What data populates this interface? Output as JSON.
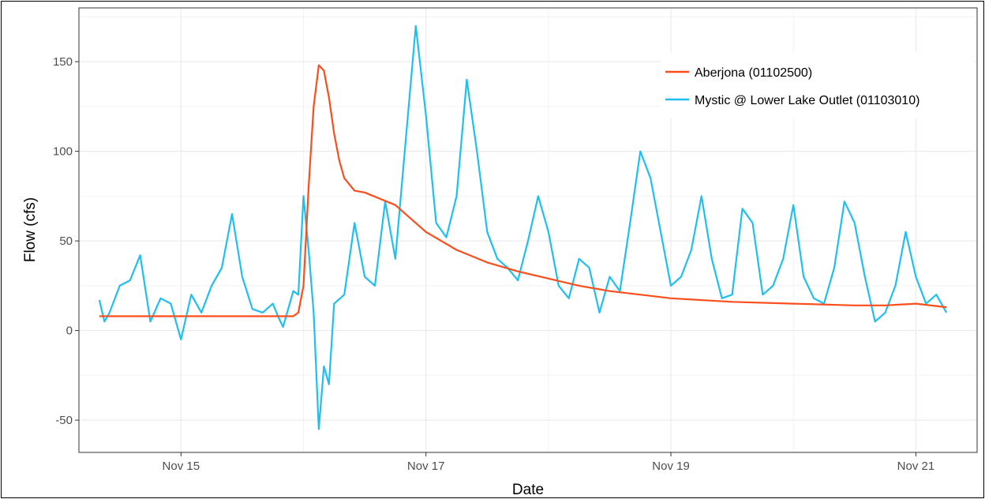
{
  "chart_data": {
    "type": "line",
    "title": "",
    "xlabel": "Date",
    "ylabel": "Flow (cfs)",
    "xlim": [
      "2016-11-14T04:00",
      "2016-11-21T12:00"
    ],
    "ylim": [
      -68,
      180
    ],
    "x_ticks": [
      {
        "label": "Nov 15",
        "date": "2016-11-15T00:00"
      },
      {
        "label": "Nov 17",
        "date": "2016-11-17T00:00"
      },
      {
        "label": "Nov 19",
        "date": "2016-11-19T00:00"
      },
      {
        "label": "Nov 21",
        "date": "2016-11-21T00:00"
      }
    ],
    "y_ticks": [
      -50,
      0,
      50,
      100,
      150
    ],
    "y_tick_labels": [
      "-50",
      "0",
      "50",
      "100",
      "150"
    ],
    "grid": true,
    "legend_position": "top-right",
    "series": [
      {
        "name": "Aberjona (01102500)",
        "color": "#fc4e1c",
        "x": [
          "2016-11-14T08:00",
          "2016-11-15T00:00",
          "2016-11-15T12:00",
          "2016-11-15T22:00",
          "2016-11-15T23:00",
          "2016-11-16T00:00",
          "2016-11-16T01:00",
          "2016-11-16T02:00",
          "2016-11-16T03:00",
          "2016-11-16T04:00",
          "2016-11-16T05:00",
          "2016-11-16T06:00",
          "2016-11-16T07:00",
          "2016-11-16T08:00",
          "2016-11-16T10:00",
          "2016-11-16T12:00",
          "2016-11-16T18:00",
          "2016-11-17T00:00",
          "2016-11-17T06:00",
          "2016-11-17T12:00",
          "2016-11-17T18:00",
          "2016-11-18T00:00",
          "2016-11-18T06:00",
          "2016-11-18T12:00",
          "2016-11-18T18:00",
          "2016-11-19T00:00",
          "2016-11-19T12:00",
          "2016-11-20T00:00",
          "2016-11-20T12:00",
          "2016-11-20T18:00",
          "2016-11-21T00:00",
          "2016-11-21T06:00"
        ],
        "y": [
          8,
          8,
          8,
          8,
          10,
          25,
          80,
          125,
          148,
          145,
          130,
          110,
          95,
          85,
          78,
          77,
          70,
          55,
          45,
          38,
          33,
          29,
          25,
          22,
          20,
          18,
          16,
          15,
          14,
          14,
          15,
          13
        ]
      },
      {
        "name": "Mystic @ Lower Lake Outlet (01103010)",
        "color": "#1fbff0",
        "x": [
          "2016-11-14T08:00",
          "2016-11-14T09:00",
          "2016-11-14T10:00",
          "2016-11-14T12:00",
          "2016-11-14T14:00",
          "2016-11-14T16:00",
          "2016-11-14T18:00",
          "2016-11-14T20:00",
          "2016-11-14T22:00",
          "2016-11-15T00:00",
          "2016-11-15T02:00",
          "2016-11-15T04:00",
          "2016-11-15T06:00",
          "2016-11-15T08:00",
          "2016-11-15T10:00",
          "2016-11-15T12:00",
          "2016-11-15T14:00",
          "2016-11-15T16:00",
          "2016-11-15T18:00",
          "2016-11-15T19:00",
          "2016-11-15T20:00",
          "2016-11-15T22:00",
          "2016-11-15T23:00",
          "2016-11-16T00:00",
          "2016-11-16T01:00",
          "2016-11-16T02:00",
          "2016-11-16T03:00",
          "2016-11-16T04:00",
          "2016-11-16T05:00",
          "2016-11-16T06:00",
          "2016-11-16T08:00",
          "2016-11-16T10:00",
          "2016-11-16T12:00",
          "2016-11-16T14:00",
          "2016-11-16T16:00",
          "2016-11-16T18:00",
          "2016-11-16T20:00",
          "2016-11-16T22:00",
          "2016-11-17T00:00",
          "2016-11-17T02:00",
          "2016-11-17T04:00",
          "2016-11-17T06:00",
          "2016-11-17T08:00",
          "2016-11-17T10:00",
          "2016-11-17T12:00",
          "2016-11-17T14:00",
          "2016-11-17T16:00",
          "2016-11-17T18:00",
          "2016-11-17T20:00",
          "2016-11-17T22:00",
          "2016-11-18T00:00",
          "2016-11-18T02:00",
          "2016-11-18T04:00",
          "2016-11-18T06:00",
          "2016-11-18T08:00",
          "2016-11-18T10:00",
          "2016-11-18T12:00",
          "2016-11-18T14:00",
          "2016-11-18T16:00",
          "2016-11-18T18:00",
          "2016-11-18T20:00",
          "2016-11-18T22:00",
          "2016-11-19T00:00",
          "2016-11-19T02:00",
          "2016-11-19T04:00",
          "2016-11-19T06:00",
          "2016-11-19T08:00",
          "2016-11-19T10:00",
          "2016-11-19T12:00",
          "2016-11-19T14:00",
          "2016-11-19T16:00",
          "2016-11-19T18:00",
          "2016-11-19T20:00",
          "2016-11-19T22:00",
          "2016-11-20T00:00",
          "2016-11-20T02:00",
          "2016-11-20T04:00",
          "2016-11-20T06:00",
          "2016-11-20T08:00",
          "2016-11-20T10:00",
          "2016-11-20T12:00",
          "2016-11-20T14:00",
          "2016-11-20T16:00",
          "2016-11-20T18:00",
          "2016-11-20T20:00",
          "2016-11-20T22:00",
          "2016-11-21T00:00",
          "2016-11-21T02:00",
          "2016-11-21T04:00",
          "2016-11-21T06:00"
        ],
        "y": [
          17,
          5,
          10,
          25,
          28,
          42,
          5,
          18,
          15,
          -5,
          20,
          10,
          25,
          35,
          65,
          30,
          12,
          10,
          15,
          8,
          2,
          22,
          20,
          75,
          45,
          10,
          -55,
          -20,
          -30,
          15,
          20,
          60,
          30,
          25,
          72,
          40,
          105,
          170,
          120,
          60,
          52,
          75,
          140,
          100,
          55,
          40,
          35,
          28,
          50,
          75,
          55,
          25,
          18,
          40,
          35,
          10,
          30,
          22,
          60,
          100,
          85,
          55,
          25,
          30,
          45,
          75,
          40,
          18,
          20,
          68,
          60,
          20,
          25,
          40,
          70,
          30,
          18,
          15,
          35,
          72,
          60,
          30,
          5,
          10,
          25,
          55,
          30,
          15,
          20,
          10
        ]
      }
    ]
  }
}
